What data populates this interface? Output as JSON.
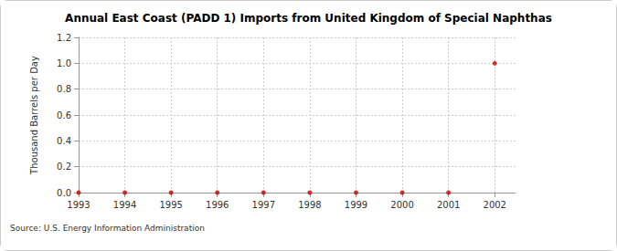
{
  "chart_data": {
    "type": "scatter",
    "title": "Annual East Coast (PADD 1) Imports from United Kingdom of Special Naphthas",
    "y_label": "Thousand Barrels per Day",
    "source": "Source: U.S. Energy Information Administration",
    "x": [
      1993,
      1994,
      1995,
      1996,
      1997,
      1998,
      1999,
      2000,
      2001,
      2002
    ],
    "values": [
      0,
      0,
      0,
      0,
      0,
      0,
      0,
      0,
      0,
      1
    ],
    "color": "#cc0000",
    "marker": "circle",
    "xlim": [
      1993,
      2002.45
    ],
    "xticks": [
      1993,
      1994,
      1995,
      1996,
      1997,
      1998,
      1999,
      2000,
      2001,
      2002
    ],
    "ylim": [
      0,
      1.2
    ],
    "yticks": [
      {
        "value": 0,
        "label": "0.0"
      },
      0.2,
      0.4,
      0.6,
      0.8,
      {
        "value": 1,
        "label": "1.0"
      },
      1.2
    ],
    "grid": true
  }
}
